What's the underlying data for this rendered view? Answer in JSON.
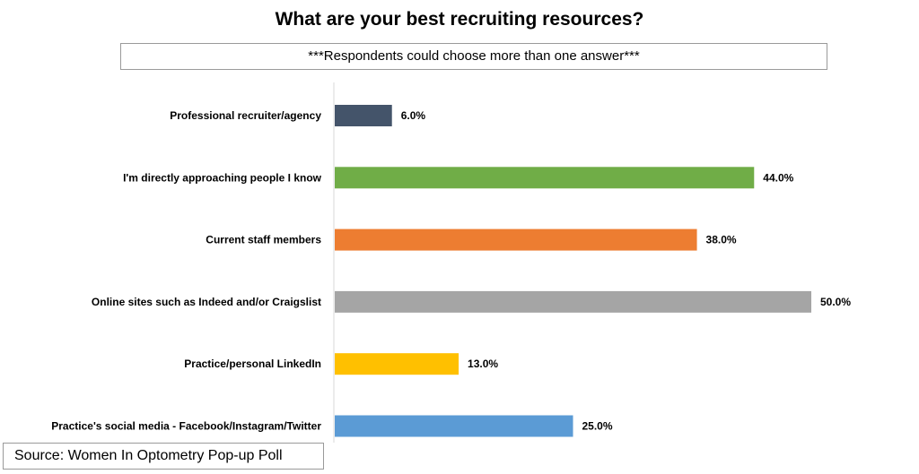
{
  "chart_data": {
    "type": "bar",
    "orientation": "horizontal",
    "title": "What are your best recruiting resources?",
    "note": "***Respondents could choose more than one answer***",
    "source": "Source: Women In Optometry Pop-up Poll",
    "categories": [
      "Professional recruiter/agency",
      "I'm directly approaching people I know",
      "Current staff members",
      "Online sites such as Indeed and/or Craigslist",
      "Practice/personal LinkedIn",
      "Practice's social media - Facebook/Instagram/Twitter"
    ],
    "values": [
      6.0,
      44.0,
      38.0,
      50.0,
      13.0,
      25.0
    ],
    "value_labels": [
      "6.0%",
      "44.0%",
      "38.0%",
      "50.0%",
      "13.0%",
      "25.0%"
    ],
    "colors": [
      "#44546a",
      "#70ad47",
      "#ed7d31",
      "#a5a5a5",
      "#ffc000",
      "#5b9bd5"
    ],
    "xlim": [
      0,
      50
    ],
    "grid": false,
    "legend": "none"
  }
}
